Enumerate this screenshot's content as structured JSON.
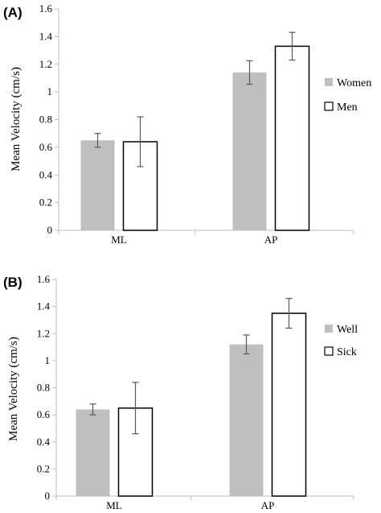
{
  "chart_data": [
    {
      "type": "bar",
      "panel_label": "(A)",
      "categories": [
        "ML",
        "AP"
      ],
      "ylabel": "Mean Velocity (cm/s)",
      "ylim": [
        0,
        1.6
      ],
      "yticks": [
        "0",
        "0.2",
        "0.4",
        "0.6",
        "0.8",
        "1",
        "1.2",
        "1.4",
        "1.6"
      ],
      "legend_position": "right",
      "grid": false,
      "series": [
        {
          "name": "Women",
          "values": [
            0.65,
            1.14
          ],
          "errors": [
            0.05,
            0.085
          ],
          "fill": "#bfbfbf",
          "stroke": "none"
        },
        {
          "name": "Men",
          "values": [
            0.64,
            1.33
          ],
          "errors": [
            0.18,
            0.1
          ],
          "fill": "#ffffff",
          "stroke": "#000000"
        }
      ]
    },
    {
      "type": "bar",
      "panel_label": "(B)",
      "categories": [
        "ML",
        "AP"
      ],
      "ylabel": "Mean Velocity (cm/s)",
      "ylim": [
        0,
        1.6
      ],
      "yticks": [
        "0",
        "0.2",
        "0.4",
        "0.6",
        "0.8",
        "1",
        "1.2",
        "1.4",
        "1.6"
      ],
      "legend_position": "right",
      "grid": false,
      "series": [
        {
          "name": "Well",
          "values": [
            0.64,
            1.12
          ],
          "errors": [
            0.04,
            0.07
          ],
          "fill": "#bfbfbf",
          "stroke": "none"
        },
        {
          "name": "Sick",
          "values": [
            0.65,
            1.35
          ],
          "errors": [
            0.19,
            0.11
          ],
          "fill": "#ffffff",
          "stroke": "#000000"
        }
      ]
    }
  ],
  "colors": {
    "axis": "#bfbfbf",
    "errorbar": "#595959",
    "text": "#000000"
  }
}
